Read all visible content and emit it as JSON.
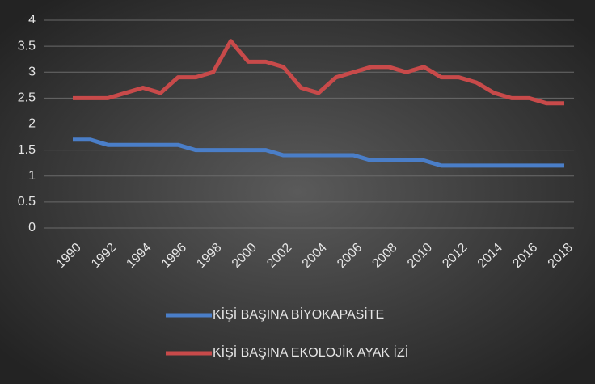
{
  "chart_data": {
    "type": "line",
    "x": [
      1990,
      1991,
      1992,
      1993,
      1994,
      1995,
      1996,
      1997,
      1998,
      1999,
      2000,
      2001,
      2002,
      2003,
      2004,
      2005,
      2006,
      2007,
      2008,
      2009,
      2010,
      2011,
      2012,
      2013,
      2014,
      2015,
      2016,
      2017,
      2018
    ],
    "series": [
      {
        "name": "KİŞİ BAŞINA BİYOKAPASİTE",
        "color": "#4a7ec8",
        "values": [
          1.7,
          1.7,
          1.6,
          1.6,
          1.6,
          1.6,
          1.6,
          1.5,
          1.5,
          1.5,
          1.5,
          1.5,
          1.4,
          1.4,
          1.4,
          1.4,
          1.4,
          1.3,
          1.3,
          1.3,
          1.3,
          1.2,
          1.2,
          1.2,
          1.2,
          1.2,
          1.2,
          1.2,
          1.2
        ]
      },
      {
        "name": "KİŞİ BAŞINA EKOLOJİK AYAK İZİ",
        "color": "#c84a4a",
        "values": [
          2.5,
          2.5,
          2.5,
          2.6,
          2.7,
          2.6,
          2.9,
          2.9,
          3.0,
          3.6,
          3.2,
          3.2,
          3.1,
          2.7,
          2.6,
          2.9,
          3.0,
          3.1,
          3.1,
          3.0,
          3.1,
          2.9,
          2.9,
          2.8,
          2.6,
          2.5,
          2.5,
          2.4,
          2.4
        ]
      }
    ],
    "xlim": [
      1990,
      2018
    ],
    "xticks": [
      1990,
      1992,
      1994,
      1996,
      1998,
      2000,
      2002,
      2004,
      2006,
      2008,
      2010,
      2012,
      2014,
      2016,
      2018
    ],
    "ylim": [
      0,
      4
    ],
    "yticks": [
      0,
      0.5,
      1,
      1.5,
      2,
      2.5,
      3,
      3.5,
      4
    ],
    "grid": true,
    "legend": "bottom"
  }
}
